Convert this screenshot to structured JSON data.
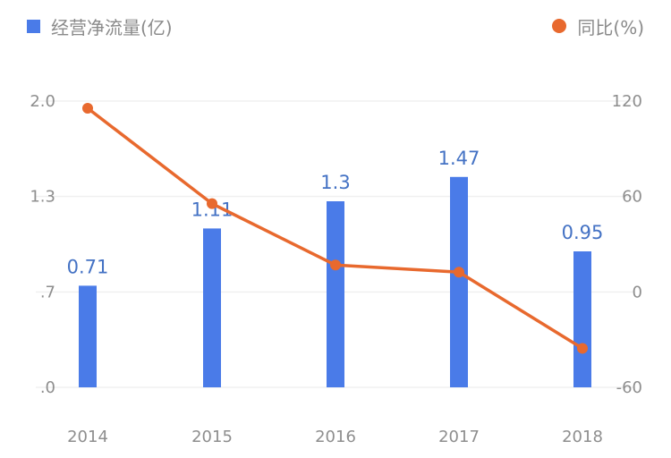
{
  "legend": {
    "bars_label": "经营净流量(亿)",
    "line_label": "同比(%)"
  },
  "colors": {
    "bar": "#4a7be8",
    "line": "#e8692e",
    "bar_label": "#4472c4",
    "grid": "#f0f0f0",
    "axis_text": "#8e8e8e"
  },
  "chart_data": {
    "type": "bar+line",
    "title": "",
    "categories": [
      "2014",
      "2015",
      "2016",
      "2017",
      "2018"
    ],
    "series": [
      {
        "name": "经营净流量(亿)",
        "type": "bar",
        "axis": "left",
        "values": [
          0.71,
          1.11,
          1.3,
          1.47,
          0.95
        ]
      },
      {
        "name": "同比(%)",
        "type": "line",
        "axis": "right",
        "values": [
          115.5,
          55.5,
          16.9,
          12.4,
          -35.5
        ]
      }
    ],
    "left_axis": {
      "ticks": [
        ".0",
        ".7",
        "1.3",
        "2.0"
      ],
      "ylim": [
        0,
        2.0
      ]
    },
    "right_axis": {
      "ticks": [
        "-60",
        "0",
        "60",
        "120"
      ],
      "ylim": [
        -60,
        120
      ]
    },
    "grid": true,
    "legend_position": "top"
  }
}
